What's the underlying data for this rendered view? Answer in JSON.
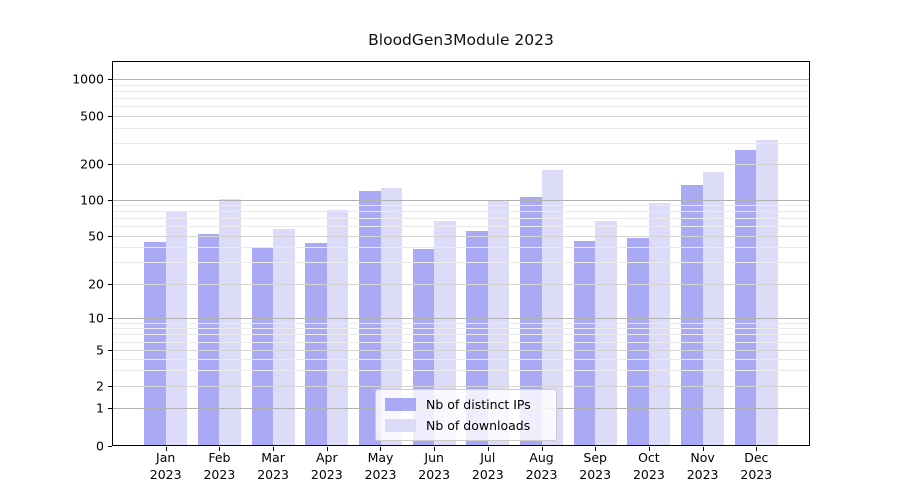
{
  "chart_data": {
    "type": "bar",
    "title": "BloodGen3Module 2023",
    "xlabel": "",
    "ylabel": "",
    "categories": [
      "Jan 2023",
      "Feb 2023",
      "Mar 2023",
      "Apr 2023",
      "May 2023",
      "Jun 2023",
      "Jul 2023",
      "Aug 2023",
      "Sep 2023",
      "Oct 2023",
      "Nov 2023",
      "Dec 2023"
    ],
    "series": [
      {
        "name": "Nb of distinct IPs",
        "color": "#a9a9f4",
        "values": [
          44,
          52,
          40,
          43,
          120,
          39,
          55,
          106,
          45,
          48,
          133,
          260
        ]
      },
      {
        "name": "Nb of downloads",
        "color": "#dcdcf9",
        "values": [
          80,
          102,
          57,
          83,
          126,
          66,
          101,
          180,
          67,
          95,
          170,
          315
        ]
      }
    ],
    "yscale": "symlog",
    "yticks": [
      0,
      1,
      2,
      5,
      10,
      20,
      50,
      100,
      200,
      500,
      1000
    ],
    "ylim": [
      0,
      1400
    ],
    "grid": true,
    "legend_position": "lower center",
    "colors": {
      "axis": "#000000",
      "grid_major": "#b2b2b2",
      "grid_mid": "#d4d4d4",
      "grid_minor": "#eaeaea",
      "background": "#ffffff"
    }
  }
}
